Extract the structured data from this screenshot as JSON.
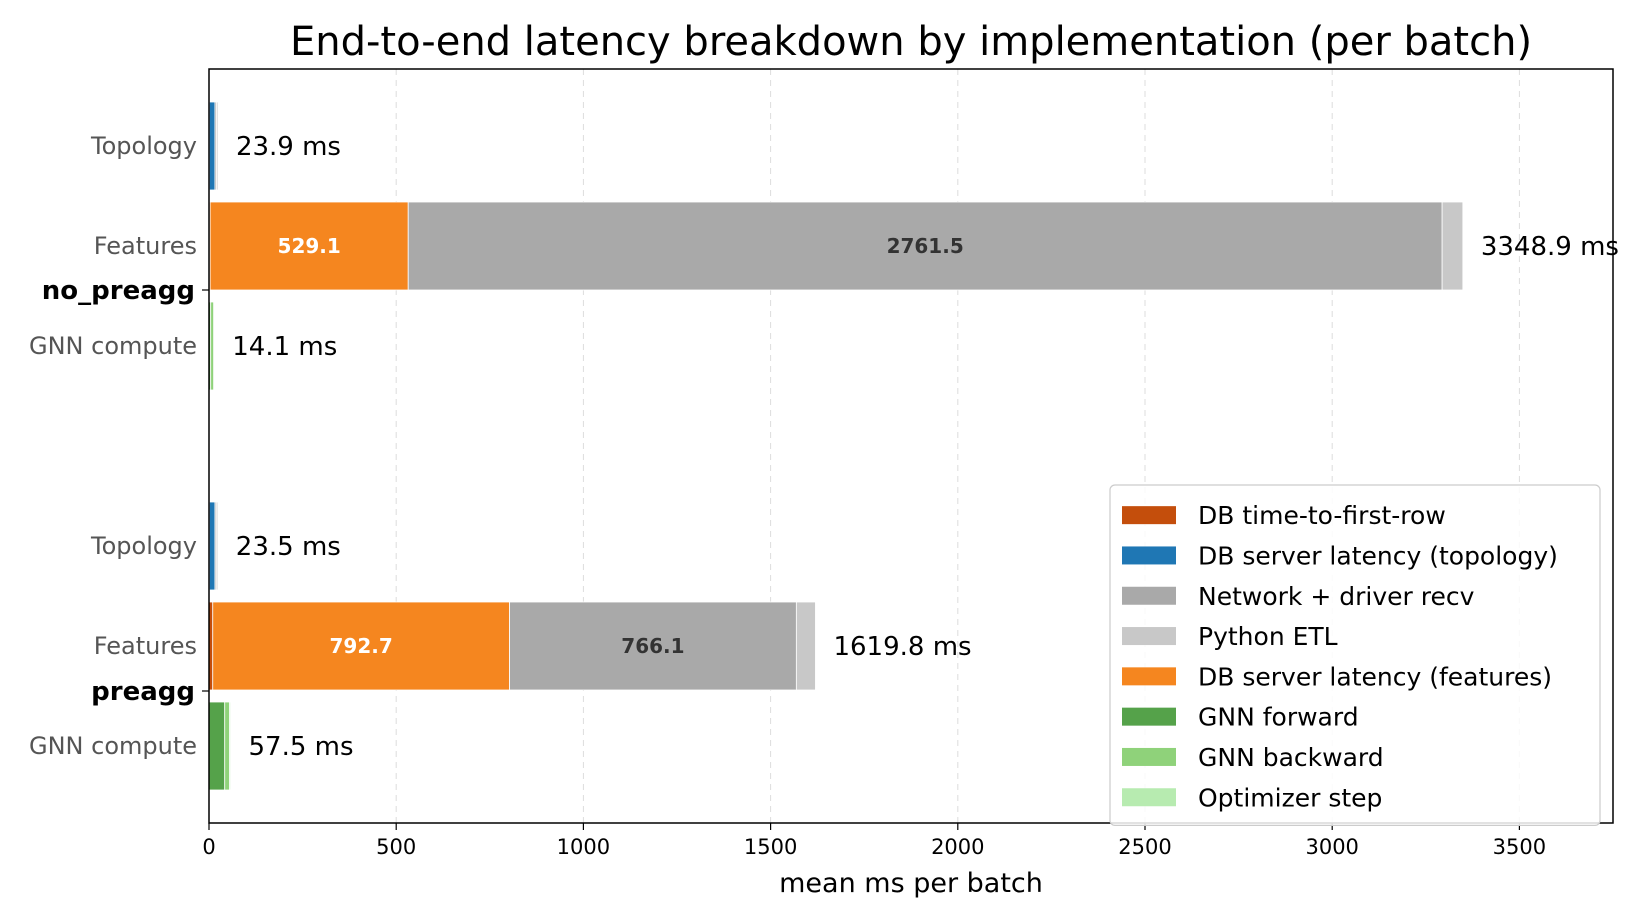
{
  "chart_data": {
    "type": "bar",
    "orientation": "horizontal",
    "stacked": true,
    "title": "End-to-end latency breakdown by implementation (per batch)",
    "xlabel": "mean ms per batch",
    "xlim": [
      0,
      3750
    ],
    "xticks": [
      0,
      500,
      1000,
      1500,
      2000,
      2500,
      3000,
      3500
    ],
    "grid": "x-dashed",
    "legend_position": "lower-right",
    "series": [
      {
        "name": "DB time-to-first-row",
        "color": "#c44e0c"
      },
      {
        "name": "DB server latency (topology)",
        "color": "#1f77b4"
      },
      {
        "name": "Network + driver recv",
        "color": "#a9a9a9"
      },
      {
        "name": "Python ETL",
        "color": "#c8c8c8"
      },
      {
        "name": "DB server latency (features)",
        "color": "#f5861f"
      },
      {
        "name": "GNN forward",
        "color": "#55a24a"
      },
      {
        "name": "GNN backward",
        "color": "#8fd27a"
      },
      {
        "name": "Optimizer step",
        "color": "#b7ebb0"
      }
    ],
    "groups": [
      {
        "name": "no_preagg",
        "bars": [
          {
            "stage": "Topology",
            "total_label": "23.9 ms",
            "segments": [
              {
                "series": 0,
                "value": 1.0
              },
              {
                "series": 1,
                "value": 15.0
              },
              {
                "series": 2,
                "value": 3.9
              },
              {
                "series": 3,
                "value": 4.0
              }
            ]
          },
          {
            "stage": "Features",
            "total_label": "3348.9 ms",
            "segments": [
              {
                "series": 0,
                "value": 3.0
              },
              {
                "series": 4,
                "value": 529.1,
                "label": "529.1",
                "label_color": "#ffffff"
              },
              {
                "series": 2,
                "value": 2761.5,
                "label": "2761.5",
                "label_color": "#333333"
              },
              {
                "series": 3,
                "value": 55.3
              }
            ]
          },
          {
            "stage": "GNN compute",
            "total_label": "14.1 ms",
            "segments": [
              {
                "series": 5,
                "value": 4.5
              },
              {
                "series": 6,
                "value": 8.1
              },
              {
                "series": 7,
                "value": 1.5
              }
            ]
          }
        ]
      },
      {
        "name": "preagg",
        "bars": [
          {
            "stage": "Topology",
            "total_label": "23.5 ms",
            "segments": [
              {
                "series": 0,
                "value": 1.0
              },
              {
                "series": 1,
                "value": 15.0
              },
              {
                "series": 2,
                "value": 3.5
              },
              {
                "series": 3,
                "value": 4.0
              }
            ]
          },
          {
            "stage": "Features",
            "total_label": "1619.8 ms",
            "segments": [
              {
                "series": 0,
                "value": 10.0
              },
              {
                "series": 4,
                "value": 792.7,
                "label": "792.7",
                "label_color": "#ffffff"
              },
              {
                "series": 2,
                "value": 766.1,
                "label": "766.1",
                "label_color": "#333333"
              },
              {
                "series": 3,
                "value": 51.0
              }
            ]
          },
          {
            "stage": "GNN compute",
            "total_label": "57.5 ms",
            "segments": [
              {
                "series": 5,
                "value": 42.0
              },
              {
                "series": 6,
                "value": 12.5
              },
              {
                "series": 7,
                "value": 3.0
              }
            ]
          }
        ]
      }
    ]
  }
}
